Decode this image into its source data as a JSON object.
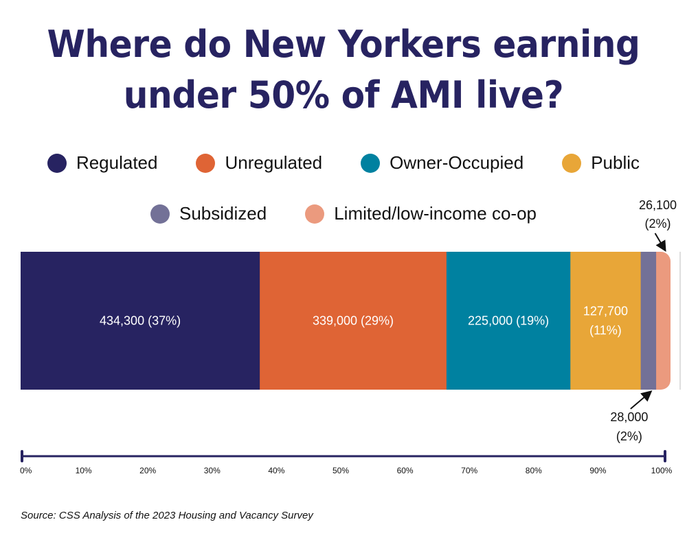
{
  "title_lines": [
    "Where do New Yorkers earning",
    "under 50% of AMI live?"
  ],
  "legend": {
    "row1": [
      {
        "label": "Regulated",
        "color": "#272361"
      },
      {
        "label": "Unregulated",
        "color": "#DF6435"
      },
      {
        "label": "Owner-Occupied",
        "color": "#0081A0"
      },
      {
        "label": "Public",
        "color": "#E8A638"
      }
    ],
    "row2": [
      {
        "label": "Subsidized",
        "color": "#737197"
      },
      {
        "label": "Limited/low-income co-op",
        "color": "#EB9A7E"
      }
    ]
  },
  "source": "Source: CSS Analysis of the 2023 Housing and Vacancy Survey",
  "chart_data": {
    "type": "bar",
    "orientation": "horizontal-stacked-100",
    "title": "Where do New Yorkers earning under 50% of AMI live?",
    "xlabel": "",
    "ylabel": "",
    "xlim": [
      0,
      100
    ],
    "x_ticks": [
      "0%",
      "10%",
      "20%",
      "30%",
      "40%",
      "50%",
      "60%",
      "70%",
      "80%",
      "90%",
      "100%"
    ],
    "legend_position": "top",
    "grid": false,
    "series": [
      {
        "name": "Regulated",
        "value": 434300,
        "percent": 37,
        "label_lines": [
          "434,300 (37%)"
        ],
        "color": "#272361",
        "label_position": "inside"
      },
      {
        "name": "Unregulated",
        "value": 339000,
        "percent": 29,
        "label_lines": [
          "339,000 (29%)"
        ],
        "color": "#DF6435",
        "label_position": "inside"
      },
      {
        "name": "Owner-Occupied",
        "value": 225000,
        "percent": 19,
        "label_lines": [
          "225,000 (19%)"
        ],
        "color": "#0081A0",
        "label_position": "inside"
      },
      {
        "name": "Public",
        "value": 127700,
        "percent": 11,
        "label_lines": [
          "127,700",
          "(11%)"
        ],
        "color": "#E8A638",
        "label_position": "inside"
      },
      {
        "name": "Subsidized",
        "value": 28000,
        "percent": 2,
        "label_lines": [
          "28,000",
          "(2%)"
        ],
        "color": "#737197",
        "label_position": "below"
      },
      {
        "name": "Limited/low-income co-op",
        "value": 26100,
        "percent": 2,
        "label_lines": [
          "26,100",
          "(2%)"
        ],
        "color": "#EB9A7E",
        "label_position": "above"
      }
    ]
  }
}
